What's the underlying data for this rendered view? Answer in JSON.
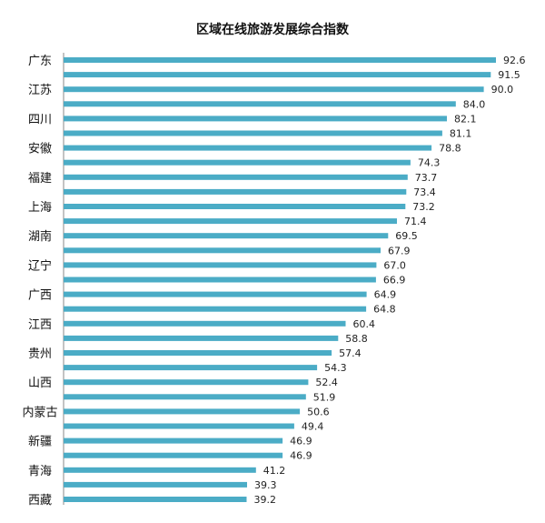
{
  "chart_data": {
    "type": "bar",
    "orientation": "horizontal",
    "title": "区域在线旅游发展综合指数",
    "bar_color": "#4bacc6",
    "grid": false,
    "legend": "none",
    "xlim": [
      0,
      95
    ],
    "values": [
      92.6,
      91.5,
      90.0,
      84.0,
      82.1,
      81.1,
      78.8,
      74.3,
      73.7,
      73.4,
      73.2,
      71.4,
      69.5,
      67.9,
      67.0,
      66.9,
      64.9,
      64.8,
      60.4,
      58.8,
      57.4,
      54.3,
      52.4,
      51.9,
      50.6,
      49.4,
      46.9,
      46.9,
      41.2,
      39.3,
      39.2
    ],
    "value_labels": [
      "92.6",
      "91.5",
      "90.0",
      "84.0",
      "82.1",
      "81.1",
      "78.8",
      "74.3",
      "73.7",
      "73.4",
      "73.2",
      "71.4",
      "69.5",
      "67.9",
      "67.0",
      "66.9",
      "64.9",
      "64.8",
      "60.4",
      "58.8",
      "57.4",
      "54.3",
      "52.4",
      "51.9",
      "50.6",
      "49.4",
      "46.9",
      "46.9",
      "41.2",
      "39.3",
      "39.2"
    ],
    "categories": [
      "广东",
      "",
      "江苏",
      "",
      "四川",
      "",
      "安徽",
      "",
      "福建",
      "",
      "上海",
      "",
      "湖南",
      "",
      "辽宁",
      "",
      "广西",
      "",
      "江西",
      "",
      "贵州",
      "",
      "山西",
      "",
      "内蒙古",
      "",
      "新疆",
      "",
      "青海",
      "",
      "西藏"
    ]
  }
}
